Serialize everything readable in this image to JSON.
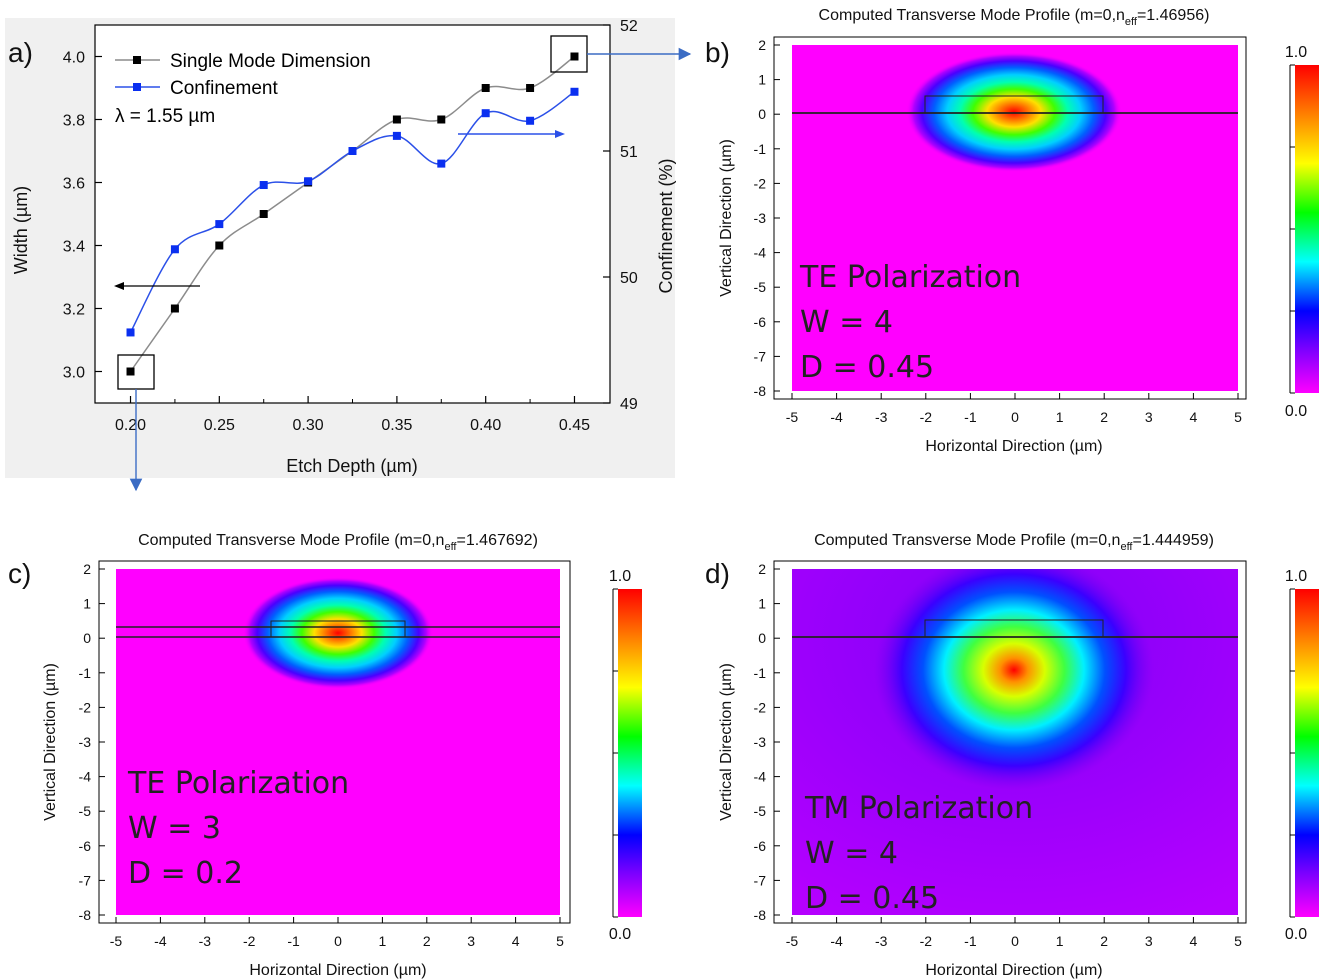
{
  "chart_data": [
    {
      "panel": "a)",
      "type": "line",
      "xlabel": "Etch Depth (µm)",
      "ylabel": "Width (µm)",
      "y2label": "Confinement (%)",
      "xlim": [
        0.18,
        0.47
      ],
      "ylim": [
        2.9,
        4.1
      ],
      "y2lim": [
        49,
        52
      ],
      "xticks": [
        "0.20",
        "0.25",
        "0.30",
        "0.35",
        "0.40",
        "0.45"
      ],
      "yticks": [
        "3.0",
        "3.2",
        "3.4",
        "3.6",
        "3.8",
        "4.0"
      ],
      "y2ticks": [
        "49",
        "50",
        "51",
        "52"
      ],
      "annotation": "λ = 1.55 µm",
      "legend_position": "top-left",
      "series": [
        {
          "name": "Single Mode Dimension",
          "axis": "left",
          "color": "#000000",
          "line_color": "#8c8c8c",
          "x": [
            0.2,
            0.225,
            0.25,
            0.275,
            0.3,
            0.325,
            0.35,
            0.375,
            0.4,
            0.425,
            0.45
          ],
          "values": [
            3.0,
            3.2,
            3.4,
            3.5,
            3.6,
            3.7,
            3.8,
            3.8,
            3.9,
            3.9,
            4.0
          ]
        },
        {
          "name": "Confinement",
          "axis": "right",
          "color": "#0a2ff0",
          "line_color": "#2b50e8",
          "x": [
            0.2,
            0.225,
            0.25,
            0.275,
            0.3,
            0.325,
            0.35,
            0.375,
            0.4,
            0.425,
            0.45
          ],
          "values": [
            49.56,
            50.22,
            50.42,
            50.73,
            50.76,
            51.0,
            51.12,
            50.9,
            51.3,
            51.24,
            51.47
          ]
        }
      ]
    },
    {
      "panel": "b)",
      "type": "heatmap",
      "title_prefix": "Computed Transverse Mode Profile (m=0,n",
      "title_sub": "eff",
      "title_suffix": "=1.46956)",
      "xlabel": "Horizontal Direction (µm)",
      "ylabel": "Vertical Direction (µm)",
      "xlim": [
        -5,
        5
      ],
      "ylim": [
        -8,
        2
      ],
      "xticks": [
        "-5",
        "-4",
        "-3",
        "-2",
        "-1",
        "0",
        "1",
        "2",
        "3",
        "4",
        "5"
      ],
      "yticks": [
        "2",
        "1",
        "0",
        "-1",
        "-2",
        "-3",
        "-4",
        "-5",
        "-6",
        "-7",
        "-8"
      ],
      "colorbar_max": "1.0",
      "colorbar_min": "0.0",
      "annotations": [
        "TE Polarization",
        "W = 4",
        "D = 0.45"
      ]
    },
    {
      "panel": "c)",
      "type": "heatmap",
      "title_prefix": "Computed Transverse Mode Profile (m=0,n",
      "title_sub": "eff",
      "title_suffix": "=1.467692)",
      "xlabel": "Horizontal Direction (µm)",
      "ylabel": "Vertical Direction (µm)",
      "xlim": [
        -5,
        5
      ],
      "ylim": [
        -8,
        2
      ],
      "xticks": [
        "-5",
        "-4",
        "-3",
        "-2",
        "-1",
        "0",
        "1",
        "2",
        "3",
        "4",
        "5"
      ],
      "yticks": [
        "2",
        "1",
        "0",
        "-1",
        "-2",
        "-3",
        "-4",
        "-5",
        "-6",
        "-7",
        "-8"
      ],
      "colorbar_max": "1.0",
      "colorbar_min": "0.0",
      "annotations": [
        "TE Polarization",
        "W = 3",
        "D = 0.2"
      ]
    },
    {
      "panel": "d)",
      "type": "heatmap",
      "title_prefix": "Computed Transverse Mode Profile (m=0,n",
      "title_sub": "eff",
      "title_suffix": "=1.444959)",
      "xlabel": "Horizontal Direction (µm)",
      "ylabel": "Vertical Direction (µm)",
      "xlim": [
        -5,
        5
      ],
      "ylim": [
        -8,
        2
      ],
      "xticks": [
        "-5",
        "-4",
        "-3",
        "-2",
        "-1",
        "0",
        "1",
        "2",
        "3",
        "4",
        "5"
      ],
      "yticks": [
        "2",
        "1",
        "0",
        "-1",
        "-2",
        "-3",
        "-4",
        "-5",
        "-6",
        "-7",
        "-8"
      ],
      "colorbar_max": "1.0",
      "colorbar_min": "0.0",
      "annotations": [
        "TM Polarization",
        "W = 4",
        "D = 0.45"
      ]
    }
  ]
}
